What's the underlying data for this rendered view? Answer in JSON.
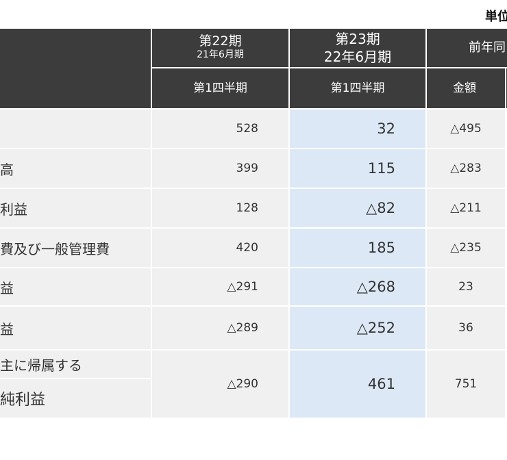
{
  "unit_label": "単位",
  "header": {
    "period22_line1": "第22期",
    "period22_line2": "21年6月期",
    "period23_line1": "第23期",
    "period23_line2": "22年6月期",
    "yoy": "前年同",
    "q1_22": "第1四半期",
    "q1_23": "第1四半期",
    "amount": "金額"
  },
  "rows": [
    {
      "label": "",
      "v22": "528",
      "v23": "32",
      "diff": "△495"
    },
    {
      "label": "高",
      "v22": "399",
      "v23": "115",
      "diff": "△283"
    },
    {
      "label": "利益",
      "v22": "128",
      "v23": "△82",
      "diff": "△211"
    },
    {
      "label": "費及び一般管理費",
      "v22": "420",
      "v23": "185",
      "diff": "△235"
    },
    {
      "label": "益",
      "v22": "△291",
      "v23": "△268",
      "diff": "23"
    },
    {
      "label": "益",
      "v22": "△289",
      "v23": "△252",
      "diff": "36"
    },
    {
      "label": "主に帰属する",
      "label2": "純利益",
      "v22": "△290",
      "v23": "461",
      "diff": "751"
    }
  ]
}
